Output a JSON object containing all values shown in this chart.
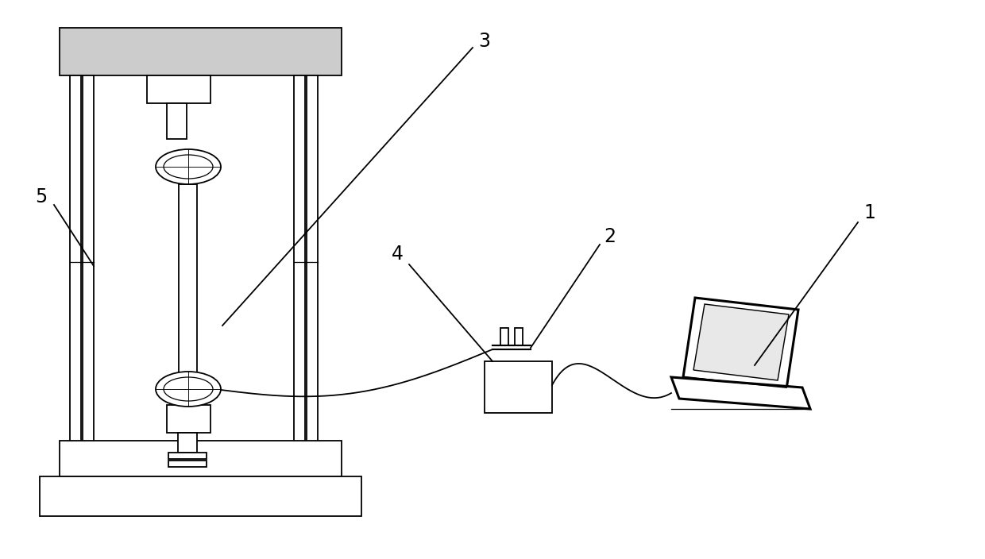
{
  "bg_color": "#ffffff",
  "lw": 1.3,
  "tlw": 2.2,
  "lc": "#000000",
  "gray_top": "#c8c8c8"
}
